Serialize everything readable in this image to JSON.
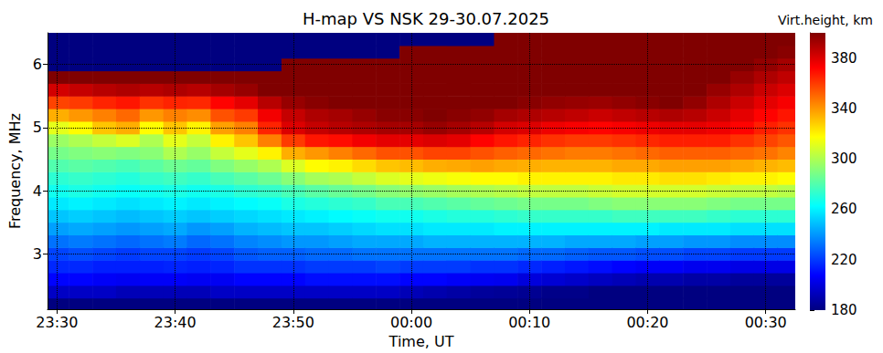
{
  "chart_data": {
    "type": "heatmap",
    "title": "H-map VS NSK 29-30.07.2025",
    "x_label": "Time, UT",
    "y_label": "Frequency, MHz",
    "xlim": [
      29.2,
      92.5
    ],
    "xticks": [
      {
        "value": 30,
        "label": "23:30"
      },
      {
        "value": 40,
        "label": "23:40"
      },
      {
        "value": 50,
        "label": "23:50"
      },
      {
        "value": 60,
        "label": "00:00"
      },
      {
        "value": 70,
        "label": "00:10"
      },
      {
        "value": 80,
        "label": "00:20"
      },
      {
        "value": 90,
        "label": "00:30"
      }
    ],
    "ylim": [
      2.12,
      6.5
    ],
    "yticks": [
      3,
      4,
      5,
      6
    ],
    "grid": true,
    "x": [
      30,
      32,
      34,
      36,
      38,
      40,
      42,
      44,
      46,
      48,
      50,
      52,
      54,
      56,
      58,
      60,
      62,
      64,
      66,
      68,
      70,
      72,
      74,
      76,
      78,
      80,
      82,
      84,
      86,
      88,
      90,
      92
    ],
    "y": [
      2.2,
      2.4,
      2.6,
      2.8,
      3.0,
      3.2,
      3.4,
      3.6,
      3.8,
      4.0,
      4.2,
      4.4,
      4.6,
      4.8,
      5.0,
      5.2,
      5.4,
      5.6,
      5.8,
      6.0,
      6.2,
      6.4
    ],
    "values": [
      [
        180,
        195,
        208,
        216,
        222,
        232,
        242,
        250,
        258,
        266,
        272,
        280,
        288,
        296,
        312,
        335,
        358,
        382,
        400,
        180,
        180,
        180
      ],
      [
        180,
        195,
        208,
        216,
        224,
        234,
        244,
        252,
        260,
        268,
        274,
        282,
        290,
        300,
        318,
        340,
        360,
        385,
        400,
        180,
        180,
        180
      ],
      [
        180,
        195,
        206,
        214,
        222,
        232,
        242,
        250,
        258,
        266,
        272,
        280,
        292,
        305,
        330,
        345,
        365,
        388,
        400,
        180,
        180,
        180
      ],
      [
        180,
        192,
        205,
        214,
        220,
        230,
        240,
        248,
        256,
        264,
        270,
        278,
        290,
        310,
        335,
        350,
        368,
        390,
        400,
        180,
        180,
        180
      ],
      [
        180,
        192,
        206,
        214,
        222,
        232,
        242,
        250,
        258,
        266,
        274,
        282,
        292,
        300,
        318,
        340,
        362,
        388,
        400,
        180,
        180,
        180
      ],
      [
        180,
        192,
        206,
        215,
        222,
        234,
        244,
        252,
        260,
        268,
        276,
        286,
        300,
        312,
        330,
        345,
        365,
        390,
        400,
        180,
        180,
        180
      ],
      [
        180,
        192,
        205,
        214,
        220,
        230,
        240,
        250,
        258,
        266,
        274,
        284,
        295,
        305,
        320,
        342,
        364,
        388,
        400,
        180,
        180,
        180
      ],
      [
        180,
        195,
        205,
        215,
        222,
        232,
        242,
        252,
        260,
        268,
        278,
        290,
        305,
        320,
        338,
        355,
        372,
        392,
        400,
        180,
        180,
        180
      ],
      [
        180,
        195,
        208,
        218,
        226,
        236,
        246,
        254,
        262,
        272,
        282,
        295,
        312,
        330,
        345,
        360,
        378,
        395,
        400,
        180,
        180,
        180
      ],
      [
        180,
        195,
        208,
        218,
        228,
        238,
        248,
        256,
        264,
        274,
        286,
        300,
        320,
        345,
        365,
        375,
        388,
        400,
        400,
        180,
        180,
        180
      ],
      [
        180,
        195,
        208,
        218,
        228,
        240,
        250,
        258,
        268,
        278,
        292,
        310,
        335,
        360,
        380,
        385,
        395,
        400,
        400,
        400,
        180,
        180
      ],
      [
        180,
        195,
        210,
        220,
        230,
        240,
        250,
        260,
        270,
        282,
        298,
        318,
        340,
        368,
        385,
        390,
        398,
        400,
        400,
        400,
        180,
        180
      ],
      [
        180,
        195,
        210,
        220,
        230,
        242,
        252,
        262,
        272,
        285,
        300,
        320,
        345,
        370,
        388,
        392,
        400,
        400,
        400,
        400,
        180,
        180
      ],
      [
        180,
        195,
        210,
        220,
        232,
        244,
        254,
        264,
        274,
        288,
        305,
        325,
        350,
        375,
        390,
        395,
        400,
        400,
        400,
        400,
        180,
        180
      ],
      [
        180,
        195,
        210,
        222,
        232,
        244,
        256,
        266,
        278,
        292,
        310,
        330,
        355,
        378,
        392,
        398,
        400,
        400,
        400,
        400,
        180,
        180
      ],
      [
        180,
        192,
        208,
        220,
        232,
        244,
        256,
        266,
        278,
        294,
        312,
        332,
        355,
        378,
        392,
        398,
        400,
        400,
        400,
        400,
        400,
        180
      ],
      [
        180,
        190,
        208,
        220,
        232,
        246,
        258,
        268,
        280,
        296,
        314,
        335,
        358,
        380,
        395,
        400,
        400,
        400,
        400,
        400,
        400,
        180
      ],
      [
        180,
        188,
        206,
        220,
        232,
        246,
        258,
        270,
        282,
        298,
        316,
        336,
        358,
        378,
        392,
        398,
        400,
        400,
        400,
        400,
        400,
        180
      ],
      [
        180,
        186,
        205,
        218,
        232,
        246,
        258,
        270,
        284,
        300,
        318,
        338,
        355,
        372,
        388,
        396,
        400,
        400,
        400,
        400,
        400,
        180
      ],
      [
        180,
        185,
        204,
        218,
        232,
        246,
        260,
        272,
        286,
        302,
        318,
        336,
        352,
        368,
        382,
        392,
        400,
        400,
        400,
        400,
        400,
        400
      ],
      [
        180,
        184,
        200,
        216,
        230,
        246,
        260,
        274,
        288,
        304,
        320,
        335,
        350,
        365,
        380,
        390,
        398,
        400,
        400,
        400,
        400,
        400
      ],
      [
        180,
        182,
        198,
        214,
        230,
        246,
        260,
        274,
        288,
        304,
        320,
        334,
        348,
        362,
        376,
        388,
        396,
        400,
        400,
        400,
        400,
        400
      ],
      [
        180,
        182,
        196,
        212,
        228,
        244,
        260,
        274,
        288,
        304,
        320,
        334,
        346,
        360,
        374,
        386,
        395,
        400,
        400,
        400,
        400,
        400
      ],
      [
        180,
        180,
        194,
        210,
        226,
        244,
        260,
        274,
        290,
        306,
        320,
        334,
        346,
        360,
        372,
        384,
        394,
        400,
        400,
        400,
        400,
        400
      ],
      [
        180,
        180,
        192,
        208,
        226,
        244,
        260,
        276,
        292,
        308,
        322,
        336,
        348,
        362,
        374,
        386,
        396,
        400,
        400,
        400,
        400,
        400
      ],
      [
        180,
        180,
        190,
        206,
        224,
        242,
        260,
        276,
        292,
        308,
        322,
        336,
        350,
        364,
        376,
        388,
        398,
        400,
        400,
        400,
        400,
        400
      ],
      [
        180,
        180,
        190,
        206,
        224,
        242,
        258,
        276,
        292,
        308,
        324,
        338,
        352,
        366,
        378,
        390,
        400,
        400,
        400,
        400,
        400,
        400
      ],
      [
        180,
        180,
        188,
        204,
        222,
        240,
        258,
        276,
        292,
        308,
        324,
        338,
        352,
        366,
        378,
        388,
        396,
        400,
        400,
        400,
        400,
        400
      ],
      [
        180,
        180,
        188,
        204,
        222,
        240,
        258,
        274,
        290,
        306,
        322,
        338,
        352,
        366,
        376,
        384,
        390,
        395,
        400,
        400,
        400,
        400
      ],
      [
        180,
        180,
        186,
        202,
        220,
        238,
        256,
        272,
        288,
        304,
        320,
        336,
        350,
        362,
        372,
        378,
        384,
        390,
        395,
        400,
        400,
        400
      ],
      [
        180,
        180,
        186,
        202,
        220,
        238,
        256,
        272,
        288,
        304,
        320,
        334,
        348,
        358,
        366,
        372,
        378,
        384,
        390,
        396,
        400,
        400
      ],
      [
        180,
        180,
        186,
        202,
        220,
        238,
        256,
        272,
        288,
        302,
        318,
        332,
        344,
        354,
        362,
        368,
        374,
        380,
        386,
        392,
        398,
        400
      ]
    ],
    "colorbar": {
      "label": "Virt.height, km",
      "range": [
        180,
        400
      ],
      "ticks": [
        180,
        220,
        260,
        300,
        340,
        380
      ]
    }
  }
}
